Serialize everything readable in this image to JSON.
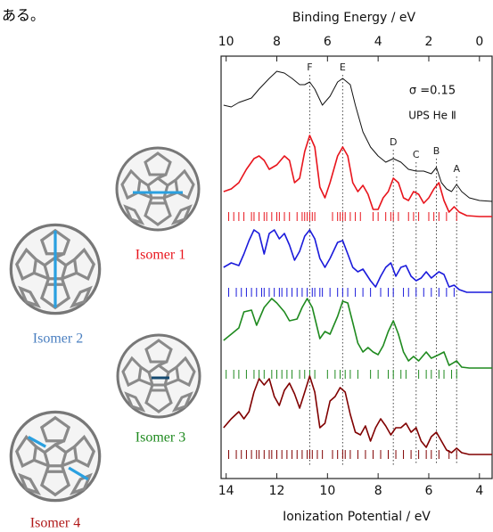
{
  "top_text": "ある。",
  "chart_data": {
    "type": "line",
    "x_label": "Ionization Potential / eV",
    "x2_label": "Binding Energy / eV",
    "xlim": [
      14.2,
      3.5
    ],
    "xticks": [
      14,
      12,
      10,
      8,
      6,
      4
    ],
    "x2lim": [
      10.2,
      -0.5
    ],
    "x2ticks": [
      10,
      8,
      6,
      4,
      2,
      0
    ],
    "ylim": [
      5.6,
      100.4
    ],
    "annotations": [
      {
        "text": "F",
        "x": 10.7
      },
      {
        "text": "E",
        "x": 9.4
      },
      {
        "text": "D",
        "x": 7.4
      },
      {
        "text": "C",
        "x": 6.5
      },
      {
        "text": "B",
        "x": 5.7
      },
      {
        "text": "A",
        "x": 4.9
      }
    ],
    "sigma_label": "σ =0.15",
    "series": [
      {
        "name": "UPS He Ⅱ",
        "color": "#111111",
        "x": [
          14.1,
          13.8,
          13.5,
          13.0,
          12.7,
          12.3,
          12.0,
          11.7,
          11.4,
          11.1,
          10.9,
          10.7,
          10.5,
          10.2,
          9.9,
          9.6,
          9.4,
          9.1,
          8.9,
          8.6,
          8.3,
          8.0,
          7.7,
          7.4,
          7.1,
          6.8,
          6.5,
          6.2,
          5.9,
          5.7,
          5.5,
          5.3,
          5.1,
          4.9,
          4.7,
          4.4,
          4.0,
          3.5
        ],
        "values": [
          89.4,
          89,
          90,
          91,
          93,
          95.4,
          97,
          96.6,
          95.4,
          94,
          94,
          94.6,
          93,
          89.4,
          91.4,
          94.6,
          95.4,
          94,
          89.4,
          83.4,
          80,
          78,
          76.6,
          77.4,
          76.6,
          75,
          74.6,
          74.6,
          74,
          75.4,
          72,
          70.6,
          70,
          71.6,
          70,
          68.6,
          68,
          67.8
        ]
      },
      {
        "name": "Isomer 1",
        "color": "#e8141c",
        "label_color": "#e8141c",
        "x": [
          14.1,
          13.8,
          13.5,
          13.2,
          12.9,
          12.7,
          12.5,
          12.3,
          12.0,
          11.7,
          11.5,
          11.3,
          11.1,
          10.9,
          10.7,
          10.5,
          10.3,
          10.1,
          9.9,
          9.6,
          9.4,
          9.2,
          9.0,
          8.8,
          8.6,
          8.4,
          8.2,
          8.0,
          7.8,
          7.6,
          7.4,
          7.2,
          7.0,
          6.8,
          6.6,
          6.4,
          6.2,
          6.0,
          5.8,
          5.6,
          5.4,
          5.2,
          5.0,
          4.8,
          4.5,
          4.0,
          3.5
        ],
        "values": [
          70,
          70.6,
          72,
          75,
          77.4,
          78,
          77,
          75,
          76,
          78,
          77,
          72,
          73,
          79,
          82.6,
          80,
          71,
          68.6,
          72,
          78,
          80,
          78,
          72,
          70,
          71.4,
          69.4,
          66,
          66,
          68.6,
          70,
          73,
          72,
          68.6,
          68,
          70,
          69.4,
          67.4,
          68.6,
          70.6,
          72,
          68,
          65.4,
          66.6,
          65.4,
          64.6,
          64.4,
          64.4
        ],
        "sticks": [
          13.9,
          13.7,
          13.5,
          13.3,
          13.0,
          12.9,
          12.7,
          12.5,
          12.4,
          12.2,
          12.0,
          11.9,
          11.7,
          11.5,
          11.2,
          11.0,
          10.9,
          10.8,
          10.7,
          10.6,
          10.5,
          9.8,
          9.6,
          9.5,
          9.4,
          9.3,
          9.1,
          8.9,
          8.7,
          8.2,
          8.0,
          7.7,
          7.5,
          7.4,
          7.2,
          6.8,
          6.6,
          6.4,
          6.0,
          5.8,
          5.6,
          5.3,
          4.9
        ]
      },
      {
        "name": "Isomer 2",
        "color": "#1a1adb",
        "label_color": "#4a7fc0",
        "x": [
          14.1,
          13.8,
          13.5,
          13.3,
          13.1,
          12.9,
          12.7,
          12.5,
          12.3,
          12.1,
          11.9,
          11.7,
          11.5,
          11.3,
          11.1,
          10.9,
          10.7,
          10.5,
          10.3,
          10.1,
          9.9,
          9.6,
          9.4,
          9.2,
          9.0,
          8.8,
          8.6,
          8.3,
          8.1,
          7.9,
          7.7,
          7.5,
          7.3,
          7.1,
          6.9,
          6.7,
          6.5,
          6.3,
          6.1,
          5.9,
          5.6,
          5.4,
          5.2,
          5.0,
          4.8,
          4.5,
          4.0,
          3.5
        ],
        "values": [
          53,
          54,
          53.4,
          56,
          59,
          61.4,
          60.6,
          56,
          60.6,
          61.4,
          59.4,
          60.6,
          58,
          54.6,
          56.6,
          60,
          61.4,
          59.4,
          55,
          53,
          55,
          58.6,
          59,
          56,
          53,
          52,
          52.6,
          50,
          48.6,
          51,
          53,
          54,
          51,
          53,
          53.4,
          51,
          50,
          50.6,
          52,
          50.6,
          52,
          51.4,
          48.6,
          49,
          48,
          47.4,
          47.4,
          47.4
        ],
        "sticks": [
          13.9,
          13.6,
          13.4,
          13.2,
          13.0,
          12.8,
          12.6,
          12.5,
          12.3,
          12.1,
          11.9,
          11.8,
          11.6,
          11.4,
          11.2,
          11.0,
          10.8,
          10.6,
          10.5,
          10.3,
          10.2,
          9.9,
          9.6,
          9.4,
          9.2,
          8.9,
          8.6,
          8.3,
          7.9,
          7.6,
          7.4,
          7.0,
          6.8,
          6.5,
          6.2,
          5.9,
          5.6,
          5.3,
          5.0
        ]
      },
      {
        "name": "Isomer 3",
        "color": "#1f8a1f",
        "label_color": "#1f8a1f",
        "x": [
          14.1,
          13.8,
          13.5,
          13.3,
          13.0,
          12.8,
          12.5,
          12.2,
          12.0,
          11.7,
          11.5,
          11.2,
          11.0,
          10.8,
          10.6,
          10.3,
          10.1,
          9.9,
          9.6,
          9.4,
          9.2,
          9.0,
          8.8,
          8.6,
          8.4,
          8.2,
          8.0,
          7.8,
          7.6,
          7.4,
          7.2,
          7.0,
          6.8,
          6.6,
          6.4,
          6.1,
          5.9,
          5.6,
          5.4,
          5.2,
          4.9,
          4.7,
          4.4,
          3.5
        ],
        "values": [
          36.6,
          38,
          39.4,
          43,
          43.4,
          40,
          44,
          46,
          45,
          43,
          41,
          41.4,
          44,
          46,
          44,
          37,
          38.6,
          38,
          42,
          45.4,
          45,
          40.6,
          36,
          34,
          35,
          34,
          33.4,
          35.4,
          38.6,
          41,
          38,
          34,
          32,
          33,
          32,
          34,
          32.6,
          33.4,
          34,
          31,
          32,
          30.6,
          30.4,
          30.4
        ],
        "sticks": [
          14.0,
          13.7,
          13.5,
          13.2,
          12.9,
          12.7,
          12.5,
          12.2,
          12.0,
          11.8,
          11.6,
          11.4,
          11.1,
          10.9,
          10.7,
          10.5,
          10.0,
          9.7,
          9.5,
          9.3,
          9.1,
          8.8,
          8.3,
          8.0,
          7.6,
          7.4,
          7.1,
          6.9,
          6.4,
          6.1,
          5.9,
          5.6,
          5.4,
          5.1,
          4.9
        ]
      },
      {
        "name": "Isomer 4",
        "color": "#800000",
        "label_color": "#b01818",
        "x": [
          14.1,
          13.8,
          13.5,
          13.3,
          13.1,
          12.9,
          12.7,
          12.5,
          12.3,
          12.1,
          11.9,
          11.7,
          11.5,
          11.3,
          11.1,
          10.9,
          10.7,
          10.5,
          10.3,
          10.1,
          9.9,
          9.7,
          9.5,
          9.3,
          9.1,
          8.9,
          8.7,
          8.5,
          8.3,
          8.1,
          7.9,
          7.7,
          7.5,
          7.3,
          7.1,
          6.9,
          6.7,
          6.5,
          6.3,
          6.1,
          5.9,
          5.7,
          5.5,
          5.3,
          5.1,
          4.9,
          4.7,
          4.4,
          3.5
        ],
        "values": [
          17,
          19,
          20.6,
          19,
          20.6,
          25,
          28,
          26.6,
          28,
          24,
          22,
          25.4,
          27,
          24.6,
          21.4,
          25,
          28.6,
          25,
          17,
          18,
          23,
          24,
          26,
          25,
          20,
          16,
          15.4,
          17.4,
          14,
          17,
          19,
          17.4,
          15.4,
          17,
          17,
          18,
          16,
          17,
          14,
          12.6,
          15,
          16,
          14,
          12,
          11.4,
          12.4,
          11.4,
          11,
          11
        ],
        "sticks": [
          13.9,
          13.6,
          13.4,
          13.2,
          13.0,
          12.8,
          12.7,
          12.5,
          12.3,
          12.2,
          12.0,
          11.8,
          11.6,
          11.4,
          11.2,
          11.0,
          10.8,
          10.7,
          10.6,
          10.4,
          10.2,
          9.8,
          9.6,
          9.4,
          9.3,
          9.1,
          8.8,
          8.5,
          8.2,
          7.9,
          7.6,
          7.3,
          7.0,
          6.7,
          6.4,
          6.1,
          5.9,
          5.6,
          5.2,
          4.9
        ]
      }
    ]
  }
}
